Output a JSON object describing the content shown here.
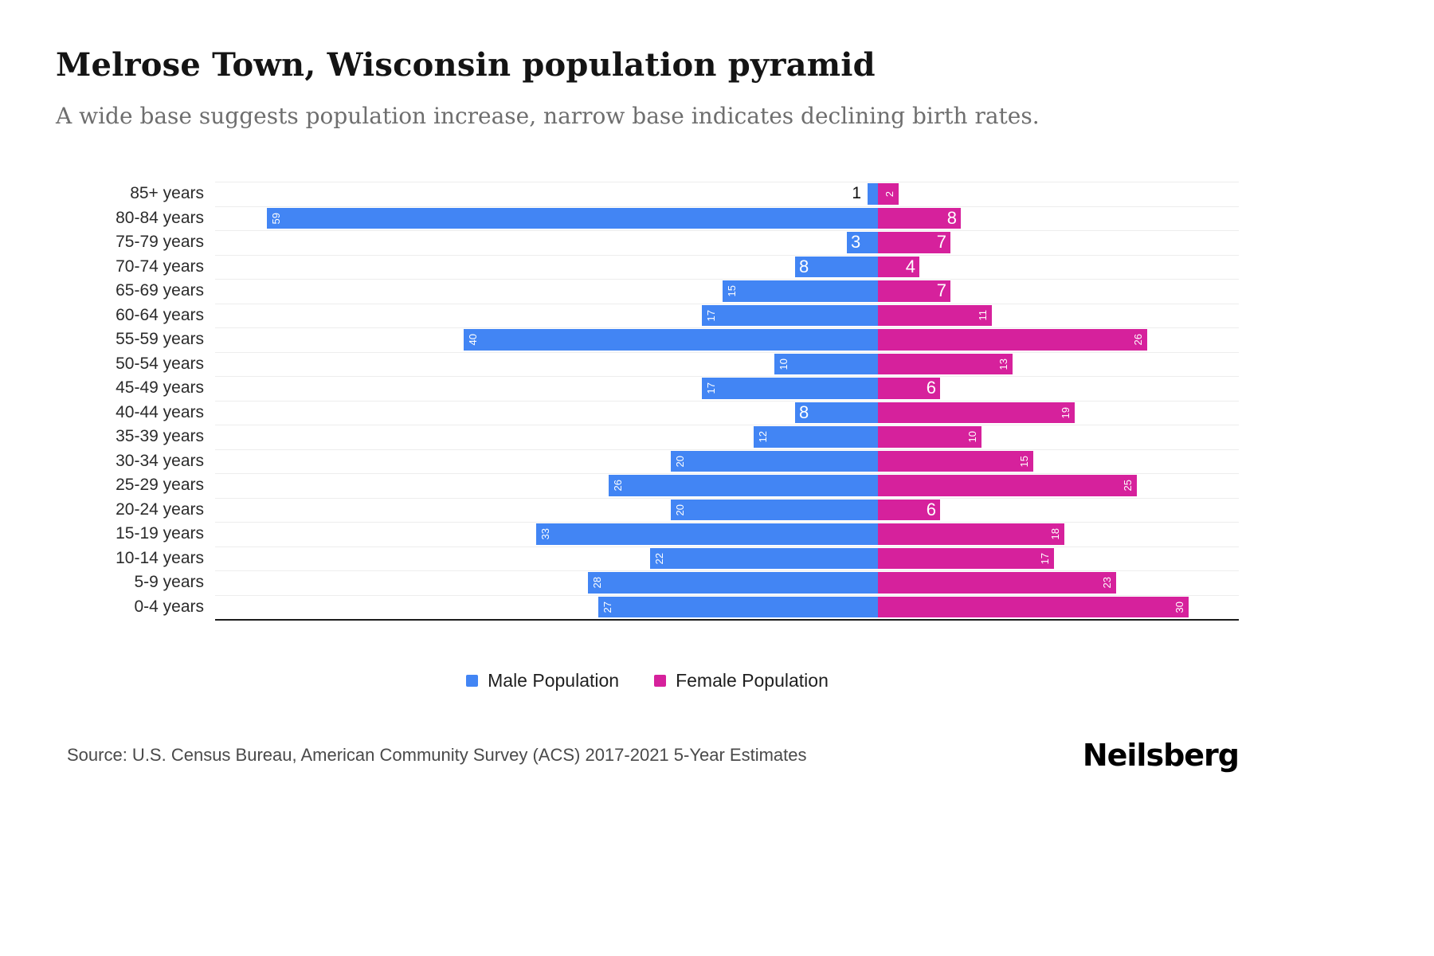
{
  "header": {
    "title": "Melrose Town, Wisconsin population pyramid",
    "subtitle": "A wide base suggests population increase, narrow base indicates declining birth rates."
  },
  "chart_data": {
    "type": "bar",
    "subtype": "population-pyramid",
    "orientation": "horizontal",
    "grid": true,
    "legend_position": "bottom",
    "categories": [
      "85+ years",
      "80-84 years",
      "75-79 years",
      "70-74 years",
      "65-69 years",
      "60-64 years",
      "55-59 years",
      "50-54 years",
      "45-49 years",
      "40-44 years",
      "35-39 years",
      "30-34 years",
      "25-29 years",
      "20-24 years",
      "15-19 years",
      "10-14 years",
      "5-9 years",
      "0-4 years"
    ],
    "series": [
      {
        "name": "Male Population",
        "color": "#4285f4",
        "values": [
          1,
          59,
          3,
          8,
          15,
          17,
          40,
          10,
          17,
          8,
          12,
          20,
          26,
          20,
          33,
          22,
          28,
          27
        ]
      },
      {
        "name": "Female Population",
        "color": "#d6219c",
        "values": [
          2,
          8,
          7,
          4,
          7,
          11,
          26,
          13,
          6,
          19,
          10,
          15,
          25,
          6,
          18,
          17,
          23,
          30
        ]
      }
    ]
  },
  "footer": {
    "source": "Source: U.S. Census Bureau, American Community Survey (ACS) 2017-2021 5-Year Estimates",
    "brand": "Neilsberg"
  }
}
